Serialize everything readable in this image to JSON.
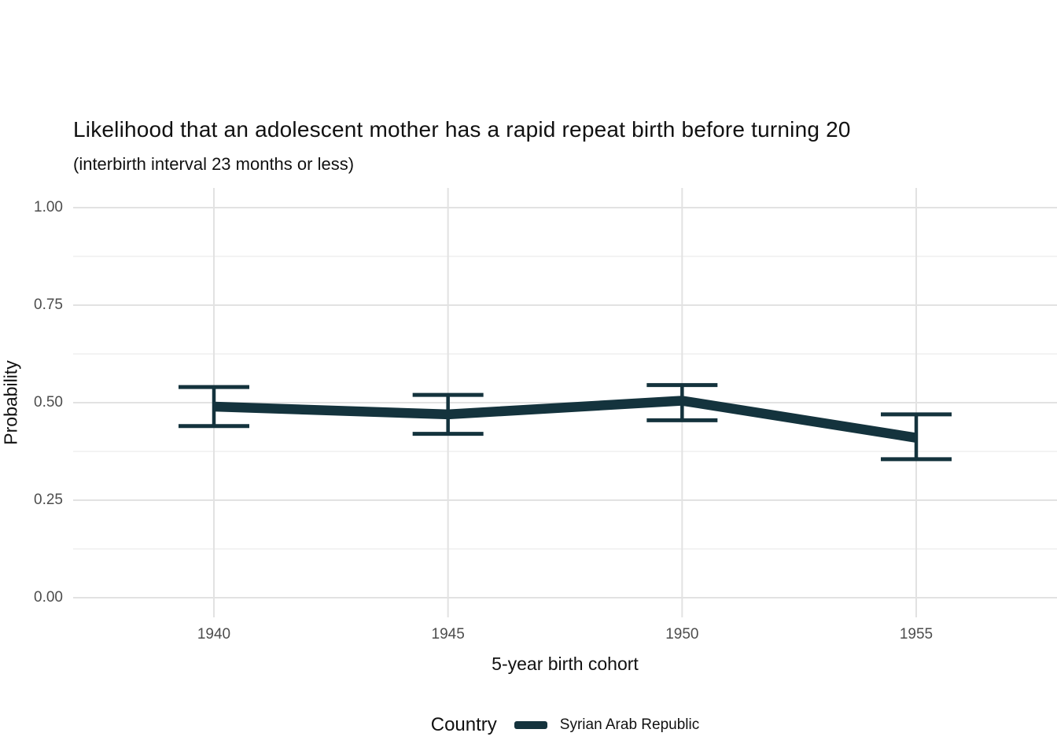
{
  "title": "Likelihood that an adolescent mother has a rapid repeat birth before turning 20",
  "subtitle": "(interbirth interval 23 months or less)",
  "legend": {
    "title": "Country",
    "items": [
      {
        "label": "Syrian Arab Republic",
        "color": "#14333d"
      }
    ]
  },
  "colors": {
    "series": "#14333d",
    "grid_major": "#e2e2e2",
    "grid_minor": "#ececec",
    "tick_label": "#4d4d4d",
    "text": "#111111",
    "background": "#ffffff"
  },
  "chart_data": {
    "type": "line",
    "title": "Likelihood that an adolescent mother has a rapid repeat birth before turning 20",
    "subtitle": "(interbirth interval 23 months or less)",
    "xlabel": "5-year birth cohort",
    "ylabel": "Probability",
    "x": [
      1940,
      1945,
      1950,
      1955
    ],
    "x_tick_labels": [
      "1940",
      "1945",
      "1950",
      "1955"
    ],
    "y_tick_values": [
      0,
      0.25,
      0.5,
      0.75,
      1
    ],
    "y_tick_labels": [
      "0.00",
      "0.25",
      "0.50",
      "0.75",
      "1.00"
    ],
    "y_minor_values": [
      0.125,
      0.375,
      0.625,
      0.875
    ],
    "ylim": [
      0,
      1
    ],
    "xlim": [
      1937,
      1958
    ],
    "grid": "on",
    "legend_position": "bottom",
    "legend_title": "Country",
    "series": [
      {
        "name": "Syrian Arab Republic",
        "color": "#14333d",
        "values": [
          0.49,
          0.47,
          0.505,
          0.41
        ],
        "ci_lower": [
          0.44,
          0.42,
          0.455,
          0.355
        ],
        "ci_upper": [
          0.54,
          0.52,
          0.545,
          0.47
        ]
      }
    ]
  }
}
